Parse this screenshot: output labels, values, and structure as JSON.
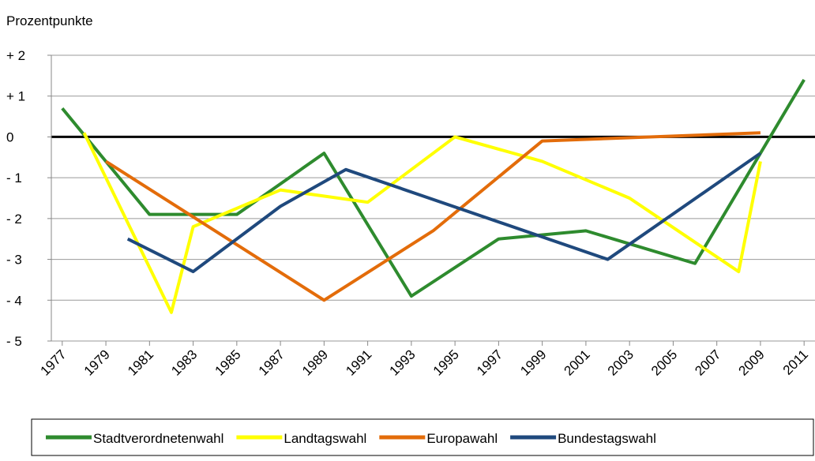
{
  "chart_data": {
    "type": "line",
    "y_axis_label": "Prozentpunkte",
    "xlim": [
      1976.5,
      2011.5
    ],
    "xticks": [
      1977,
      1979,
      1981,
      1983,
      1985,
      1987,
      1989,
      1991,
      1993,
      1995,
      1997,
      1999,
      2001,
      2003,
      2005,
      2007,
      2009,
      2011
    ],
    "ylim": [
      -5,
      2
    ],
    "yticks": [
      {
        "value": -5,
        "label": "- 5"
      },
      {
        "value": -4,
        "label": "- 4"
      },
      {
        "value": -3,
        "label": "- 3"
      },
      {
        "value": -2,
        "label": "- 2"
      },
      {
        "value": -1,
        "label": "- 1"
      },
      0,
      {
        "value": 1,
        "label": "+ 1"
      },
      {
        "value": 2,
        "label": "+ 2"
      }
    ],
    "grid": true,
    "legend": "bottom",
    "series": [
      {
        "name": "Stadtverordnetenwahl",
        "color": "#2e8b2e",
        "x": [
          1977,
          1981,
          1985,
          1989,
          1993,
          1997,
          2001,
          2006,
          2011
        ],
        "values": [
          0.7,
          -1.9,
          -1.9,
          -0.4,
          -3.9,
          -2.5,
          -2.3,
          -3.1,
          1.4
        ]
      },
      {
        "name": "Landtagswahl",
        "color": "#ffff00",
        "x": [
          1978,
          1982,
          1983,
          1987,
          1991,
          1995,
          1999,
          2003,
          2008,
          2009
        ],
        "values": [
          0.1,
          -4.3,
          -2.2,
          -1.3,
          -1.6,
          0.0,
          -0.6,
          -1.5,
          -3.3,
          -0.6
        ]
      },
      {
        "name": "Europawahl",
        "color": "#e36c0a",
        "x": [
          1979,
          1989,
          1994,
          1999,
          2009
        ],
        "values": [
          -0.6,
          -4.0,
          -2.3,
          -0.1,
          0.1
        ]
      },
      {
        "name": "Bundestagswahl",
        "color": "#1f497d",
        "x": [
          1980,
          1983,
          1987,
          1990,
          2002,
          2009
        ],
        "values": [
          -2.5,
          -3.3,
          -1.7,
          -0.8,
          -3.0,
          -0.4
        ]
      }
    ]
  }
}
